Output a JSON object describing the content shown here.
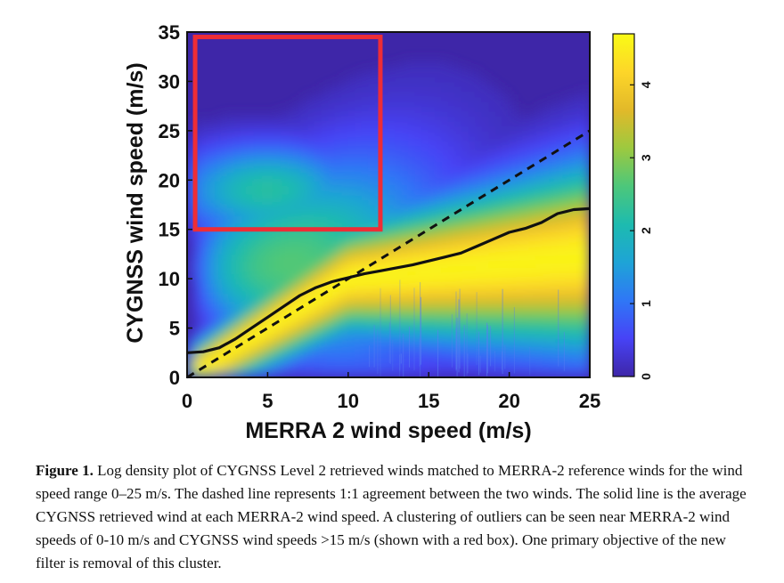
{
  "chart_data": {
    "type": "heatmap",
    "title": "",
    "xlabel": "MERRA 2 wind speed (m/s)",
    "ylabel": "CYGNSS wind speed (m/s)",
    "xlim": [
      0,
      25
    ],
    "ylim": [
      0,
      35
    ],
    "x_ticks": [
      0,
      5,
      10,
      15,
      20,
      25
    ],
    "y_ticks": [
      0,
      5,
      10,
      15,
      20,
      25,
      30,
      35
    ],
    "colorbar": {
      "range": [
        0,
        4.7
      ],
      "ticks": [
        0,
        1,
        2,
        3,
        4
      ],
      "colormap": [
        "#3e26a8",
        "#4743f6",
        "#2f77f6",
        "#1ea4d6",
        "#1dbbaf",
        "#4dc77a",
        "#9dc93f",
        "#e2b929",
        "#fdd629",
        "#f9fb15"
      ]
    },
    "identity_line": {
      "style": "dashed",
      "x": [
        0,
        25
      ],
      "y": [
        0,
        25
      ]
    },
    "average_line": {
      "style": "solid",
      "x": [
        0,
        1,
        2,
        3,
        4,
        5,
        6,
        7,
        8,
        9,
        10,
        11,
        12,
        13,
        14,
        15,
        16,
        17,
        18,
        19,
        20,
        21,
        22,
        23,
        24,
        25
      ],
      "y": [
        2.5,
        2.6,
        3.0,
        3.9,
        5.0,
        6.1,
        7.2,
        8.3,
        9.1,
        9.7,
        10.1,
        10.5,
        10.8,
        11.1,
        11.4,
        11.8,
        12.2,
        12.6,
        13.3,
        14.0,
        14.7,
        15.1,
        15.7,
        16.6,
        17.0,
        17.1
      ]
    },
    "outlier_box": {
      "color": "#ee2d36",
      "x_range": [
        0.5,
        12
      ],
      "y_range": [
        15,
        34.5
      ]
    }
  },
  "caption": {
    "label": "Figure 1.",
    "text": " Log density plot of CYGNSS Level 2 retrieved winds matched to MERRA-2 reference winds for the wind speed range 0–25 m/s. The dashed line represents 1:1 agreement between the two winds. The solid line is the average CYGNSS retrieved wind at each MERRA-2 wind speed. A clustering of outliers can be seen near MERRA-2 wind speeds of 0-10 m/s and CYGNSS wind speeds >15 m/s (shown with a red box). One primary objective of the new filter is removal of this cluster."
  }
}
